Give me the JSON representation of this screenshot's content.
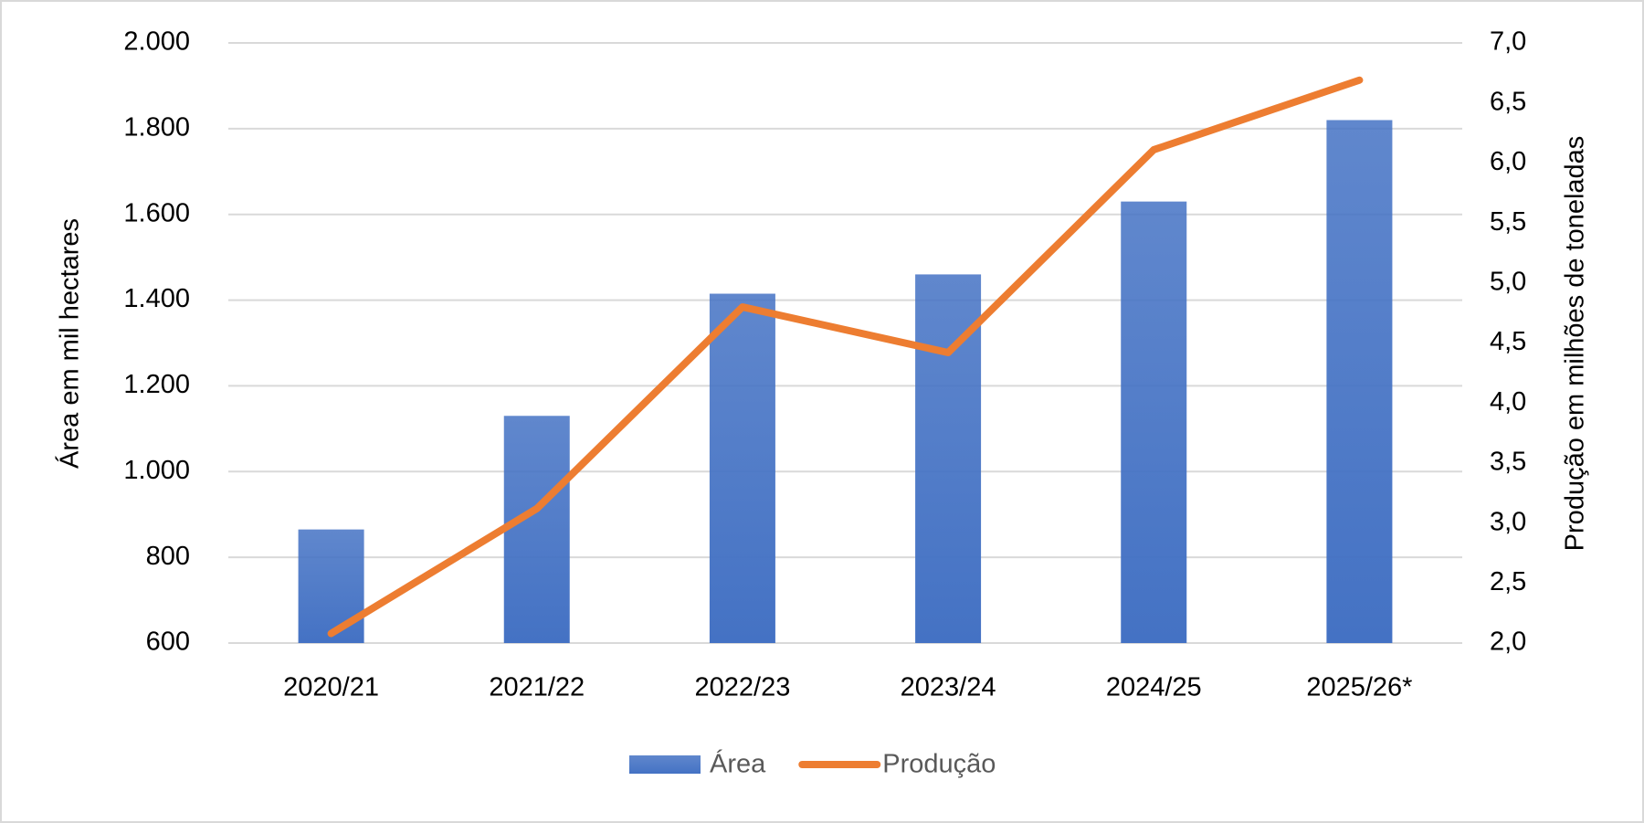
{
  "chart_data": {
    "type": "bar_line",
    "categories": [
      "2020/21",
      "2021/22",
      "2022/23",
      "2023/24",
      "2024/25",
      "2025/26*"
    ],
    "y_label": "Área em mil hectares",
    "y2_label": "Produção em milhões de toneladas",
    "series": [
      {
        "name": "Área",
        "type": "bar",
        "color": "#4472c4",
        "values": [
          865,
          1130,
          1415,
          1460,
          1630,
          1820
        ]
      },
      {
        "name": "Produção",
        "type": "line",
        "axis": "y2",
        "color": "#ed7d31",
        "values": [
          2.08,
          3.12,
          4.8,
          4.42,
          6.11,
          6.69
        ]
      }
    ],
    "ylim": [
      600,
      2000
    ],
    "yticks": [
      600,
      800,
      {
        "value": 1000,
        "label": "1.000"
      },
      {
        "value": 1200,
        "label": "1.200"
      },
      {
        "value": 1400,
        "label": "1.400"
      },
      {
        "value": 1600,
        "label": "1.600"
      },
      {
        "value": 1800,
        "label": "1.800"
      },
      {
        "value": 2000,
        "label": "2.000"
      }
    ],
    "y2lim": [
      2,
      7
    ],
    "y2ticks": [
      {
        "value": 2,
        "label": "2,0"
      },
      {
        "value": 2.5,
        "label": "2,5"
      },
      {
        "value": 3,
        "label": "3,0"
      },
      {
        "value": 3.5,
        "label": "3,5"
      },
      {
        "value": 4,
        "label": "4,0"
      },
      {
        "value": 4.5,
        "label": "4,5"
      },
      {
        "value": 5,
        "label": "5,0"
      },
      {
        "value": 5.5,
        "label": "5,5"
      },
      {
        "value": 6,
        "label": "6,0"
      },
      {
        "value": 6.5,
        "label": "6,5"
      },
      {
        "value": 7,
        "label": "7,0"
      }
    ],
    "grid": true,
    "legend": "bottom"
  }
}
